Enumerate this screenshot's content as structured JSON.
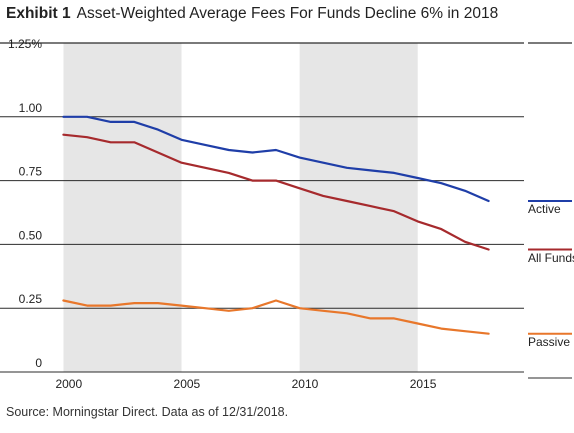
{
  "header": {
    "exhibit": "Exhibit 1",
    "title": "Asset-Weighted Average Fees For Funds Decline 6% in 2018"
  },
  "footer": {
    "source": "Source: Morningstar Direct. Data as of 12/31/2018."
  },
  "colors": {
    "active": "#1f3ea8",
    "all_funds": "#a62a2d",
    "passive": "#e8772b",
    "shade": "#e6e6e6",
    "grid": "#2b2b2b"
  },
  "chart_data": {
    "type": "line",
    "title": "Asset-Weighted Average Fees For Funds Decline 6% in 2018",
    "xlabel": "",
    "ylabel": "",
    "xlim": [
      1999.6,
      2019.5
    ],
    "ylim": [
      0,
      1.25
    ],
    "x_ticks": [
      {
        "value": 2000,
        "label": "2000"
      },
      {
        "value": 2005,
        "label": "2005"
      },
      {
        "value": 2010,
        "label": "2010"
      },
      {
        "value": 2015,
        "label": "2015"
      }
    ],
    "y_ticks": [
      {
        "value": 1.25,
        "label": "1.25%"
      },
      {
        "value": 1.0,
        "label": "1.00"
      },
      {
        "value": 0.75,
        "label": "0.75"
      },
      {
        "value": 0.5,
        "label": "0.50"
      },
      {
        "value": 0.25,
        "label": "0.25"
      },
      {
        "value": 0,
        "label": "0"
      }
    ],
    "shaded_periods": [
      [
        2000,
        2005
      ],
      [
        2010,
        2015
      ]
    ],
    "grid": "horizontal lines at 0.25 intervals",
    "legend": "right, labels at line ends",
    "x": [
      2000,
      2001,
      2002,
      2003,
      2004,
      2005,
      2006,
      2007,
      2008,
      2009,
      2010,
      2011,
      2012,
      2013,
      2014,
      2015,
      2016,
      2017,
      2018
    ],
    "series": [
      {
        "name": "Active",
        "color": "#1f3ea8",
        "values": [
          1.0,
          1.0,
          0.98,
          0.98,
          0.95,
          0.91,
          0.89,
          0.87,
          0.86,
          0.87,
          0.84,
          0.82,
          0.8,
          0.79,
          0.78,
          0.76,
          0.74,
          0.71,
          0.67
        ]
      },
      {
        "name": "All Funds",
        "color": "#a62a2d",
        "values": [
          0.93,
          0.92,
          0.9,
          0.9,
          0.86,
          0.82,
          0.8,
          0.78,
          0.75,
          0.75,
          0.72,
          0.69,
          0.67,
          0.65,
          0.63,
          0.59,
          0.56,
          0.51,
          0.48
        ]
      },
      {
        "name": "Passive",
        "color": "#e8772b",
        "values": [
          0.28,
          0.26,
          0.26,
          0.27,
          0.27,
          0.26,
          0.25,
          0.24,
          0.25,
          0.28,
          0.25,
          0.24,
          0.23,
          0.21,
          0.21,
          0.19,
          0.17,
          0.16,
          0.15
        ]
      }
    ]
  }
}
